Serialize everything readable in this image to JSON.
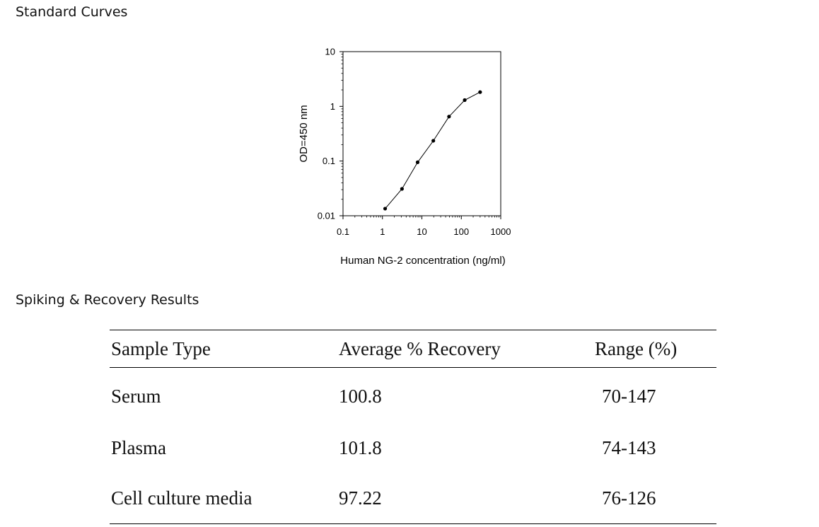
{
  "sections": {
    "standard_curves_title": "Standard Curves",
    "spiking_title": "Spiking & Recovery Results"
  },
  "chart_data": {
    "type": "line",
    "title": "",
    "xlabel": "Human NG-2 concentration (ng/ml)",
    "ylabel": "OD=450 nm",
    "x_scale": "log",
    "y_scale": "log",
    "xlim": [
      0.1,
      1000
    ],
    "ylim": [
      0.01,
      10
    ],
    "x_ticks": [
      "0.1",
      "1",
      "10",
      "100",
      "1000"
    ],
    "y_ticks": [
      "0.01",
      "0.1",
      "1",
      "10"
    ],
    "grid": false,
    "markers": true,
    "series": [
      {
        "x": [
          1.17,
          3.13,
          7.8,
          19.5,
          48.8,
          122,
          300
        ],
        "y": [
          0.0135,
          0.031,
          0.095,
          0.235,
          0.65,
          1.3,
          1.82
        ]
      }
    ]
  },
  "table": {
    "headers": [
      "Sample Type",
      "Average % Recovery",
      "Range (%)"
    ],
    "rows": [
      [
        "Serum",
        "100.8",
        "70-147"
      ],
      [
        "Plasma",
        "101.8",
        "74-143"
      ],
      [
        "Cell culture media",
        "97.22",
        "76-126"
      ]
    ]
  }
}
